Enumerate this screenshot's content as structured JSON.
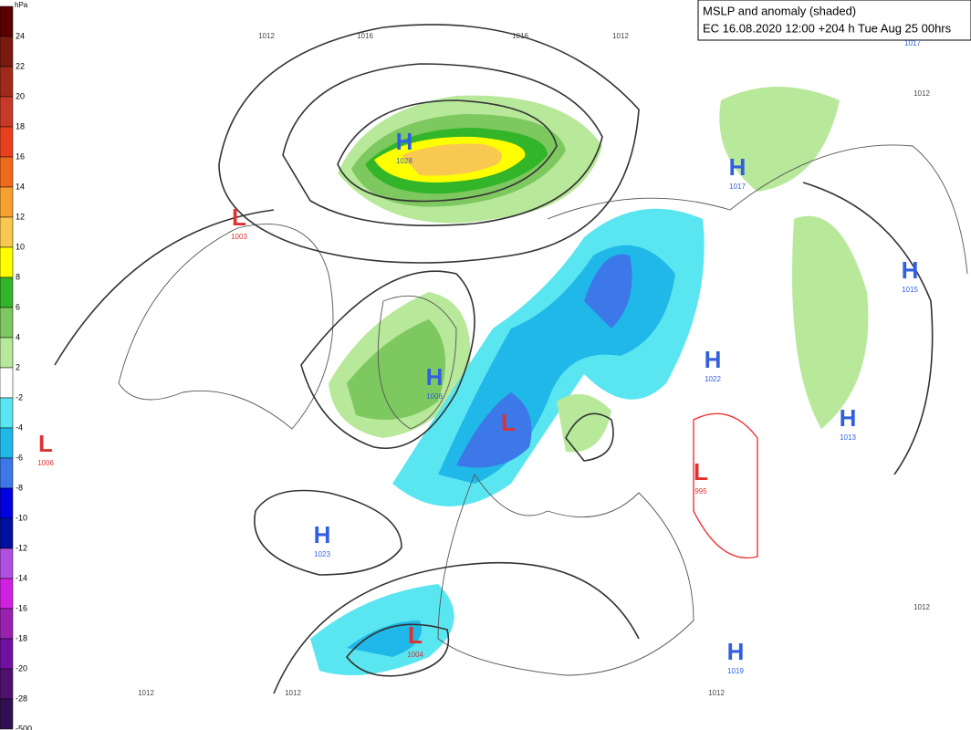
{
  "title": {
    "line1": "MSLP and anomaly (shaded)",
    "line2": "EC 16.08.2020 12:00 +204 h Tue Aug 25 00hrs"
  },
  "legend": {
    "unit": "hPa",
    "items": [
      {
        "label": 24,
        "color": "#5a0000"
      },
      {
        "label": 22,
        "color": "#7a1a10"
      },
      {
        "label": 20,
        "color": "#a02a1a"
      },
      {
        "label": 18,
        "color": "#c83a28"
      },
      {
        "label": 16,
        "color": "#e8401c"
      },
      {
        "label": 14,
        "color": "#f06a1c"
      },
      {
        "label": 12,
        "color": "#f5a030"
      },
      {
        "label": 10,
        "color": "#f8c850"
      },
      {
        "label": 8,
        "color": "#ffff00"
      },
      {
        "label": 6,
        "color": "#33b52a"
      },
      {
        "label": 4,
        "color": "#7ec860"
      },
      {
        "label": 2,
        "color": "#b8e89a"
      },
      {
        "label": -2,
        "color": "#ffffff"
      },
      {
        "label": -4,
        "color": "#5ae6f0"
      },
      {
        "label": -6,
        "color": "#20b8e8"
      },
      {
        "label": -8,
        "color": "#3c78e8"
      },
      {
        "label": -10,
        "color": "#0000e0"
      },
      {
        "label": -12,
        "color": "#0010a0"
      },
      {
        "label": -14,
        "color": "#b050e0"
      },
      {
        "label": -16,
        "color": "#d020e0"
      },
      {
        "label": -18,
        "color": "#9a20b0"
      },
      {
        "label": -20,
        "color": "#7010a0"
      },
      {
        "label": -28,
        "color": "#501070"
      },
      {
        "label": -500,
        "color": "#301050"
      }
    ]
  },
  "centers": [
    {
      "type": "H",
      "value": 1028
    },
    {
      "type": "L",
      "value": 1003
    },
    {
      "type": "H",
      "value": 1017
    },
    {
      "type": "H",
      "value": 1015
    },
    {
      "type": "H",
      "value": 1022
    },
    {
      "type": "H",
      "value": 1006
    },
    {
      "type": "L"
    },
    {
      "type": "H",
      "value": 1013
    },
    {
      "type": "L",
      "value": 1006
    },
    {
      "type": "L",
      "value": 995
    },
    {
      "type": "H",
      "value": 1023
    },
    {
      "type": "L",
      "value": 1004
    },
    {
      "type": "H",
      "value": 1019
    }
  ],
  "isobar_labels": [
    1012,
    1016,
    1016,
    1012,
    1017,
    1012,
    1012,
    1012,
    1012,
    1012
  ]
}
